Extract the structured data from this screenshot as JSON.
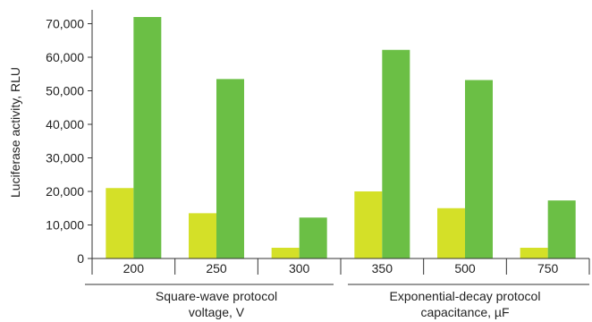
{
  "colors": {
    "series_light": "#d4e028",
    "series_dark": "#6bbf45",
    "axis": "#333333",
    "text": "#222222"
  },
  "chart_data": {
    "type": "bar",
    "title": "",
    "xlabel": "",
    "ylabel": "Luciferase activity, RLU",
    "ylim": [
      0,
      72000
    ],
    "yticks": [
      0,
      10000,
      20000,
      30000,
      40000,
      50000,
      60000,
      70000
    ],
    "ytick_labels": [
      "0",
      "10,000",
      "20,000",
      "30,000",
      "40,000",
      "50,000",
      "60,000",
      "70,000"
    ],
    "categories": [
      "200",
      "250",
      "300",
      "350",
      "500",
      "750"
    ],
    "groups": [
      {
        "label_line1": "Square-wave protocol",
        "label_line2": "voltage, V",
        "categories": [
          "200",
          "250",
          "300"
        ]
      },
      {
        "label_line1": "Exponential-decay protocol",
        "label_line2": "capacitance, µF",
        "categories": [
          "350",
          "500",
          "750"
        ]
      }
    ],
    "series": [
      {
        "values": [
          21000,
          13500,
          3200,
          20000,
          15000,
          3200
        ],
        "color": "#d4e028"
      },
      {
        "values": [
          72000,
          53500,
          12200,
          62200,
          53200,
          17300
        ],
        "color": "#6bbf45"
      }
    ],
    "grid": false,
    "legend": "none"
  }
}
